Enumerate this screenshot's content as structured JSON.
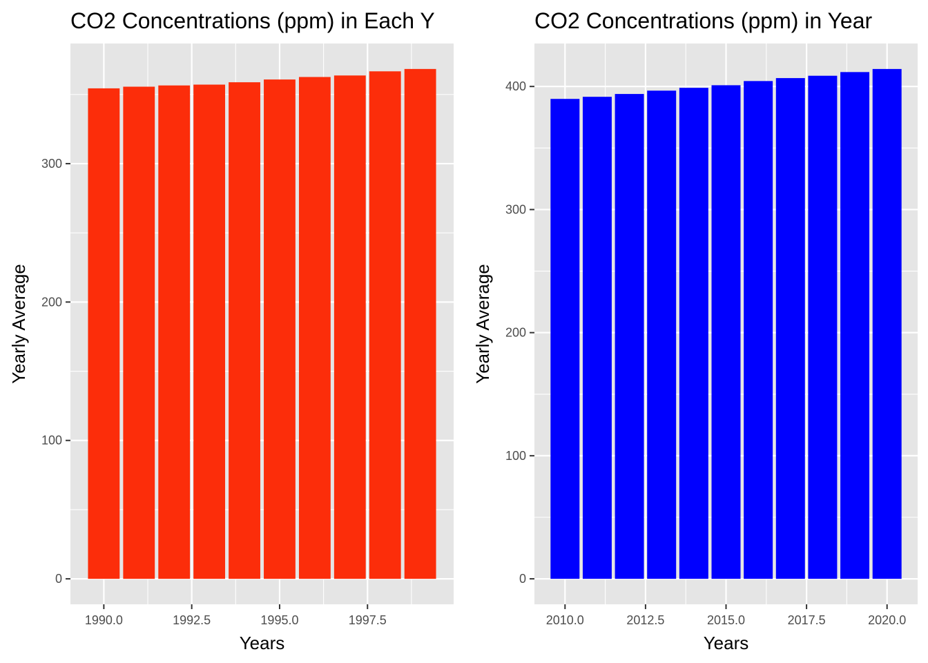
{
  "chart_data": [
    {
      "type": "bar",
      "title": "CO2 Concentrations (ppm) in Each Y",
      "xlabel": "Years",
      "ylabel": "Yearly Average",
      "bar_color": "#FC2D0A",
      "x": [
        1990,
        1991,
        1992,
        1993,
        1994,
        1995,
        1996,
        1997,
        1998,
        1999
      ],
      "values": [
        354.4,
        355.6,
        356.5,
        357.1,
        358.8,
        360.8,
        362.6,
        363.7,
        366.7,
        368.4
      ],
      "xlim": [
        1989.05,
        1999.95
      ],
      "ylim": [
        -18.4,
        386.8
      ],
      "x_ticks": [
        1990.0,
        1992.5,
        1995.0,
        1997.5
      ],
      "x_tick_labels": [
        "1990.0",
        "1992.5",
        "1995.0",
        "1997.5"
      ],
      "y_ticks": [
        0,
        100,
        200,
        300
      ],
      "y_tick_labels": [
        "0",
        "100",
        "200",
        "300"
      ],
      "grid": true,
      "legend": "none"
    },
    {
      "type": "bar",
      "title": "CO2 Concentrations (ppm) in Year",
      "xlabel": "Years",
      "ylabel": "Yearly Average",
      "bar_color": "#0000FF",
      "x": [
        2010,
        2011,
        2012,
        2013,
        2014,
        2015,
        2016,
        2017,
        2018,
        2019,
        2020
      ],
      "values": [
        389.9,
        391.6,
        393.9,
        396.6,
        398.9,
        401.0,
        404.4,
        406.8,
        408.7,
        411.7,
        414.2
      ],
      "xlim": [
        2009.05,
        2020.95
      ],
      "ylim": [
        -20.7,
        434.9
      ],
      "x_ticks": [
        2010.0,
        2012.5,
        2015.0,
        2017.5,
        2020.0
      ],
      "x_tick_labels": [
        "2010.0",
        "2012.5",
        "2015.0",
        "2017.5",
        "2020.0"
      ],
      "y_ticks": [
        0,
        100,
        200,
        300,
        400
      ],
      "y_tick_labels": [
        "0",
        "100",
        "200",
        "300",
        "400"
      ],
      "grid": true,
      "legend": "none"
    }
  ]
}
